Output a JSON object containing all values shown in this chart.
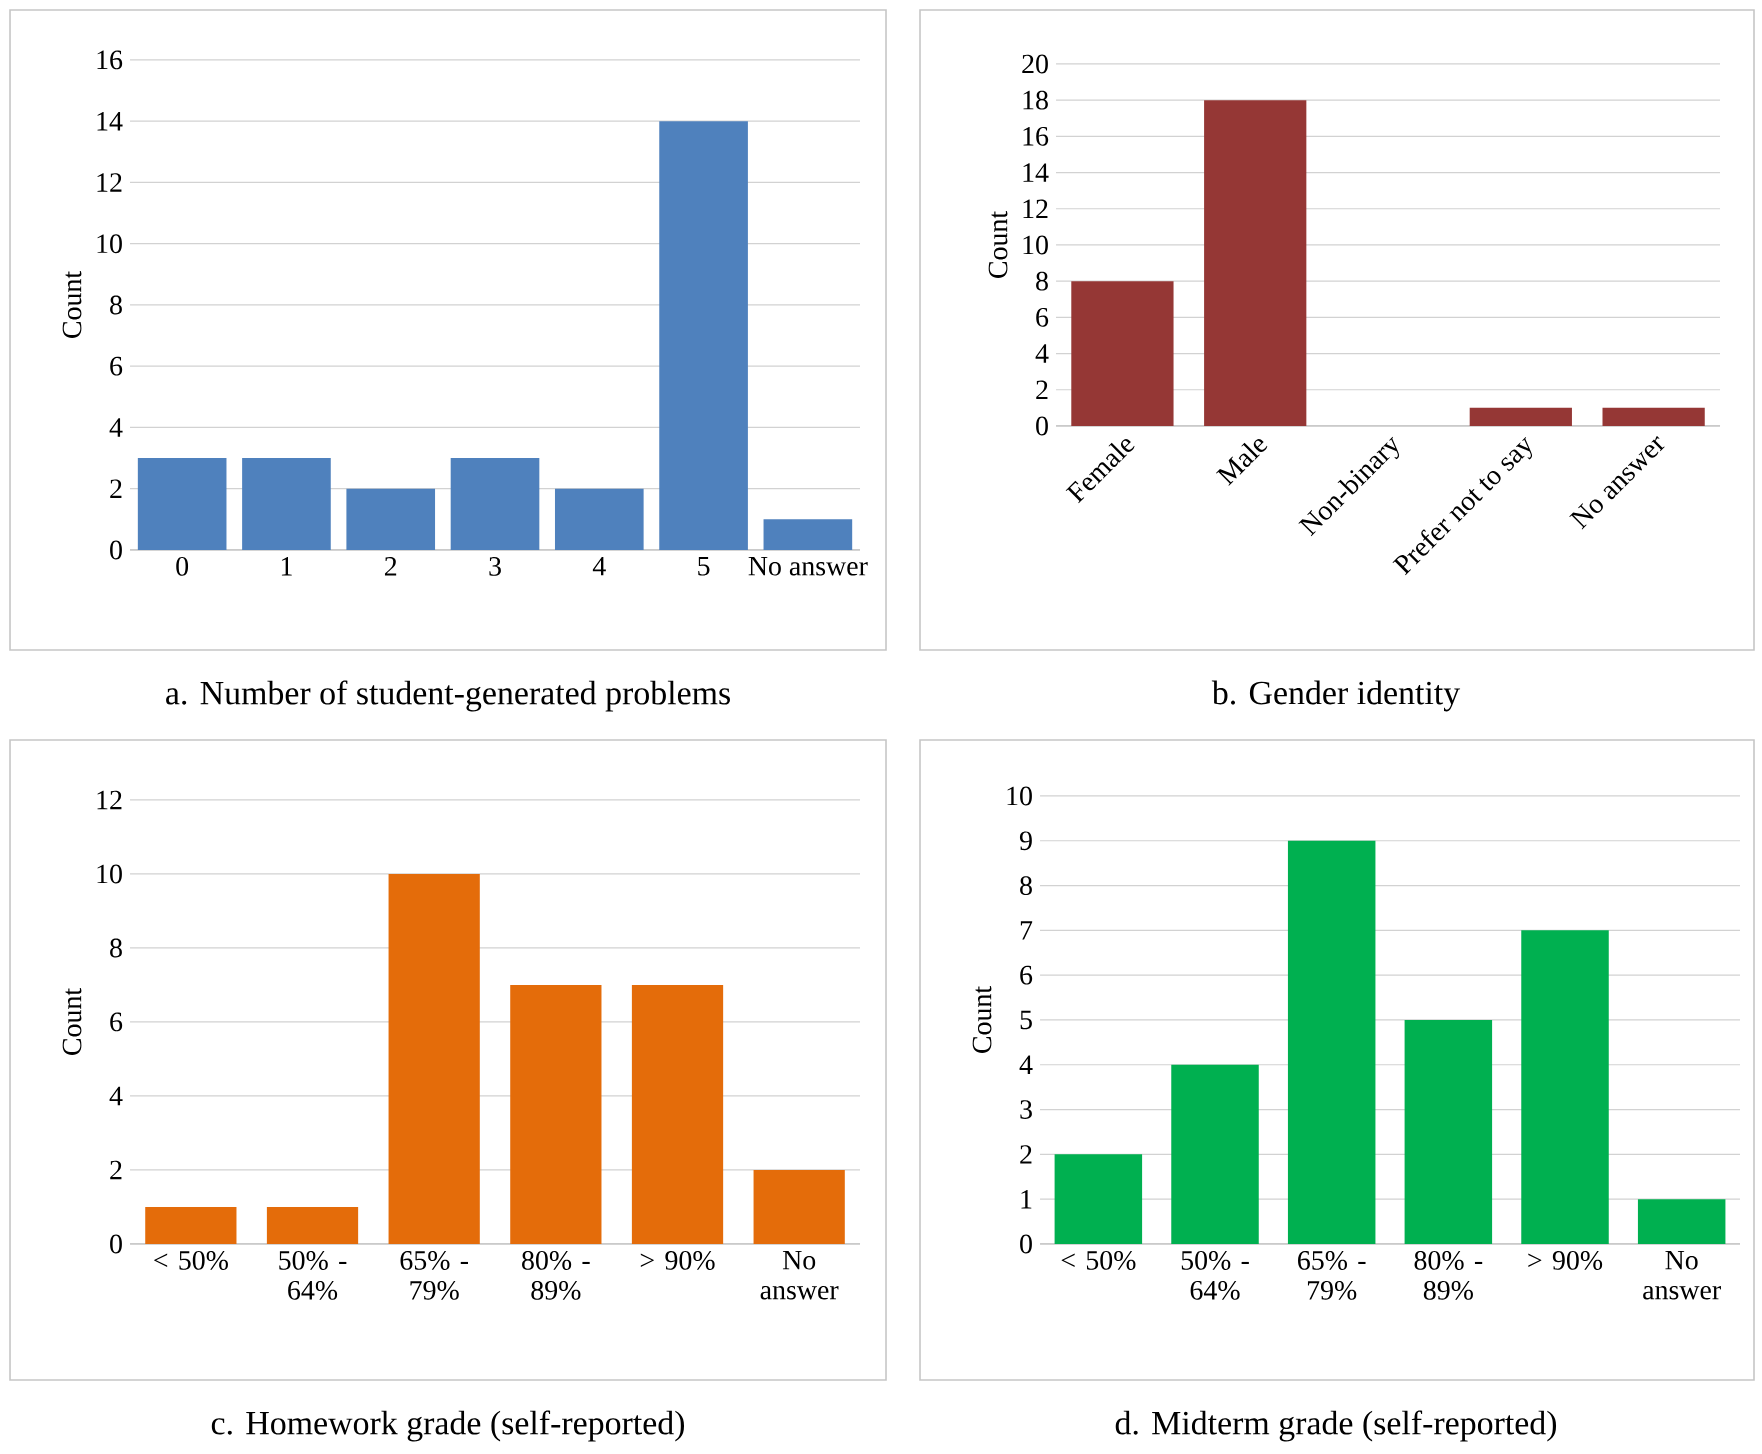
{
  "chart_data": [
    {
      "type": "bar",
      "title": "a. Number of student-generated problems",
      "ylabel": "Count",
      "categories": [
        "0",
        "1",
        "2",
        "3",
        "4",
        "5",
        "No answer"
      ],
      "values": [
        3,
        3,
        2,
        3,
        2,
        14,
        1
      ],
      "color": "#4f81bd",
      "ylim": [
        0,
        16
      ],
      "yticks": [
        0,
        2,
        4,
        6,
        8,
        10,
        12,
        14,
        16
      ],
      "grid": "y"
    },
    {
      "type": "bar",
      "title": "b. Gender identity",
      "ylabel": "Count",
      "categories": [
        "Female",
        "Male",
        "Non-binary",
        "Prefer not to say",
        "No answer"
      ],
      "values": [
        8,
        18,
        0,
        1,
        1
      ],
      "color": "#953735",
      "ylim": [
        0,
        20
      ],
      "yticks": [
        0,
        2,
        4,
        6,
        8,
        10,
        12,
        14,
        16,
        18,
        20
      ],
      "grid": "y"
    },
    {
      "type": "bar",
      "title": "c. Homework grade (self-reported)",
      "ylabel": "Count",
      "categories": [
        "< 50%",
        "50% - 64%",
        "65% - 79%",
        "80% - 89%",
        "> 90%",
        "No answer"
      ],
      "values": [
        1,
        1,
        10,
        7,
        7,
        2
      ],
      "color": "#e46c0a",
      "ylim": [
        0,
        12
      ],
      "yticks": [
        0,
        2,
        4,
        6,
        8,
        10,
        12
      ],
      "grid": "y"
    },
    {
      "type": "bar",
      "title": "d. Midterm grade (self-reported)",
      "ylabel": "Count",
      "categories": [
        "< 50%",
        "50% - 64%",
        "65% - 79%",
        "80% - 89%",
        "> 90%",
        "No answer"
      ],
      "values": [
        2,
        4,
        9,
        5,
        7,
        1
      ],
      "color": "#00b050",
      "ylim": [
        0,
        10
      ],
      "yticks": [
        0,
        1,
        2,
        3,
        4,
        5,
        6,
        7,
        8,
        9,
        10
      ],
      "grid": "y"
    }
  ]
}
